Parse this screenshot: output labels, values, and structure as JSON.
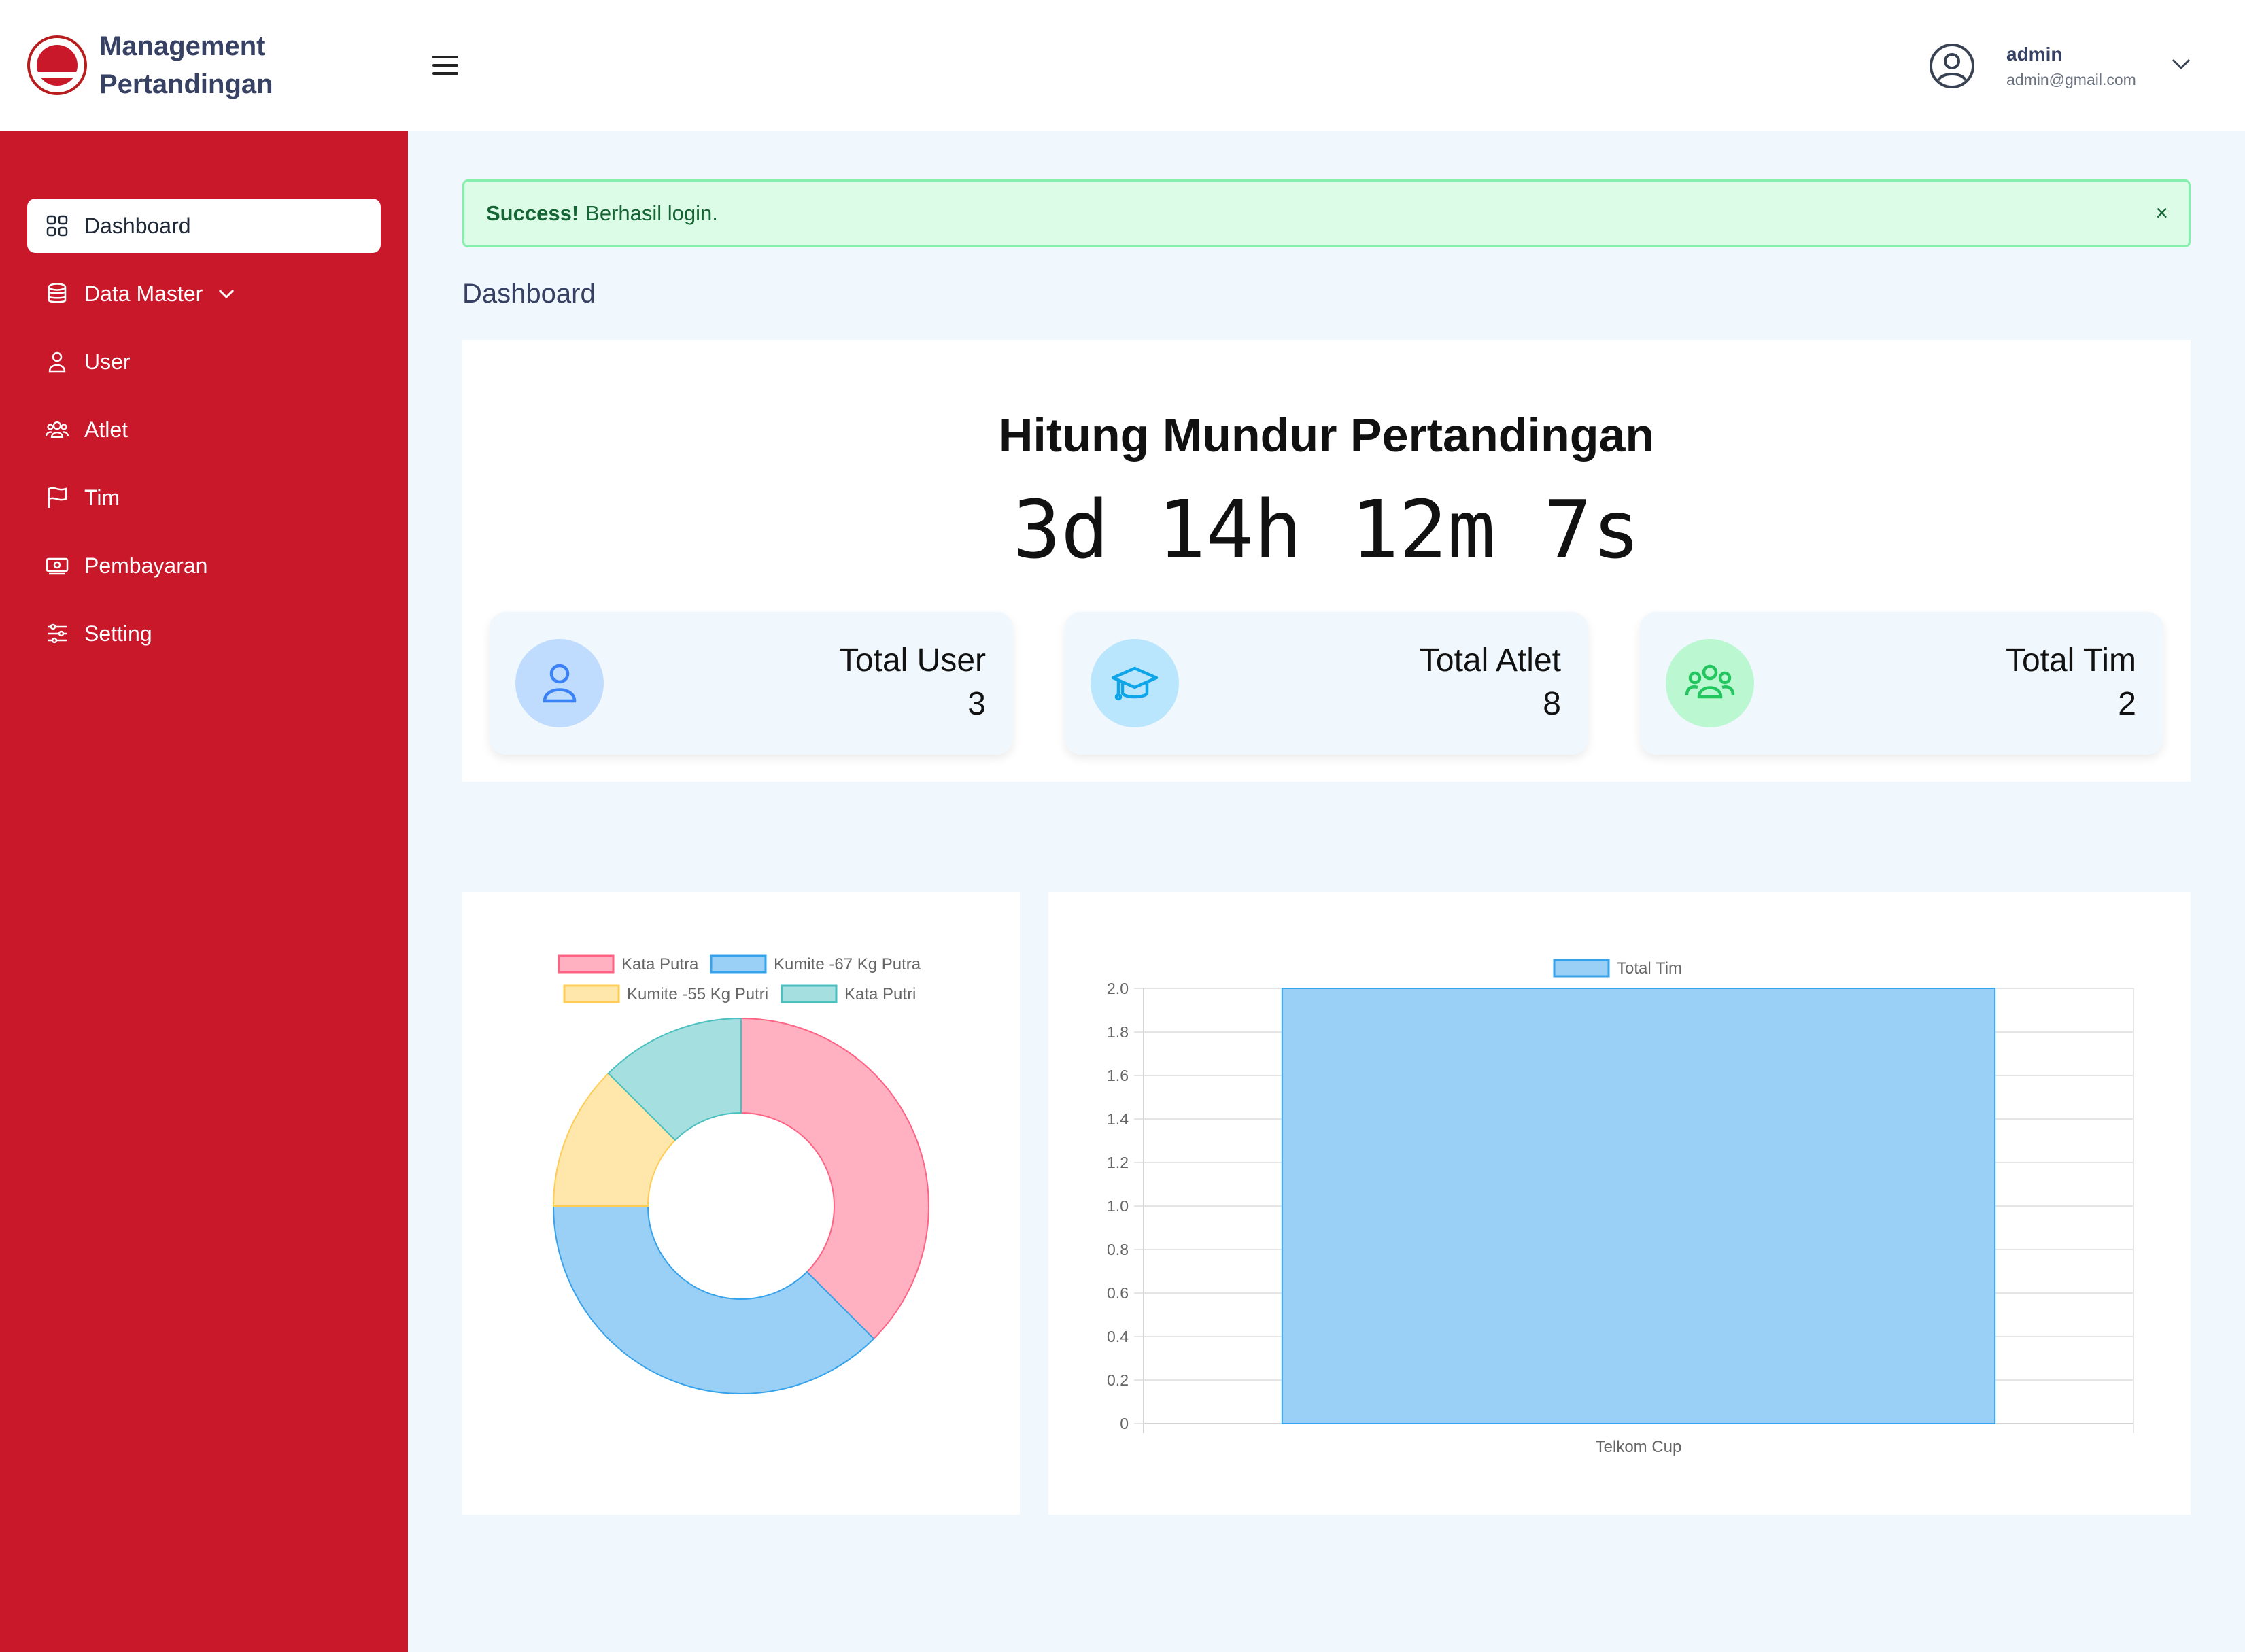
{
  "header": {
    "brand_line1": "Management",
    "brand_line2": "Pertandingan",
    "user": {
      "name": "admin",
      "email": "admin@gmail.com"
    }
  },
  "sidebar": {
    "items": [
      {
        "label": "Dashboard",
        "icon": "grid-icon",
        "active": true
      },
      {
        "label": "Data Master",
        "icon": "database-icon",
        "has_submenu": true
      },
      {
        "label": "User",
        "icon": "user-icon"
      },
      {
        "label": "Atlet",
        "icon": "users-group-icon"
      },
      {
        "label": "Tim",
        "icon": "flag-icon"
      },
      {
        "label": "Pembayaran",
        "icon": "payment-icon"
      },
      {
        "label": "Setting",
        "icon": "sliders-icon"
      }
    ]
  },
  "alert": {
    "title": "Success!",
    "message": "Berhasil login.",
    "close": "×"
  },
  "page": {
    "title": "Dashboard"
  },
  "countdown": {
    "title": "Hitung Mundur Pertandingan",
    "value": "3d 14h 12m 7s"
  },
  "stats": [
    {
      "label": "Total User",
      "value": "3",
      "icon": "user-icon",
      "color": "#3b82f6",
      "bg": "#bfdbfe"
    },
    {
      "label": "Total Atlet",
      "value": "8",
      "icon": "graduation-cap-icon",
      "color": "#0ea5e9",
      "bg": "#bae6fd"
    },
    {
      "label": "Total Tim",
      "value": "2",
      "icon": "users-group-icon",
      "color": "#22c55e",
      "bg": "#bbf7d0"
    }
  ],
  "chart_data": [
    {
      "type": "pie",
      "donut": true,
      "labels": [
        "Kata Putra",
        "Kumite -67 Kg Putra",
        "Kumite -55 Kg Putri",
        "Kata Putri"
      ],
      "values": [
        3,
        3,
        1,
        1
      ],
      "colors": [
        "#ffb1c1",
        "#9ad0f5",
        "#ffe6aa",
        "#a5dfdf"
      ],
      "borders": [
        "#ff6384",
        "#36a2eb",
        "#ffcd56",
        "#4bc0c0"
      ],
      "legend": "top"
    },
    {
      "type": "bar",
      "categories": [
        "Telkom Cup"
      ],
      "series": [
        {
          "name": "Total Tim",
          "values": [
            2
          ]
        }
      ],
      "ylim": [
        0,
        2
      ],
      "yticks": [
        "0",
        "0.2",
        "0.4",
        "0.6",
        "0.8",
        "1.0",
        "1.2",
        "1.4",
        "1.6",
        "1.8",
        "2.0"
      ],
      "color": "#9ad0f5",
      "border": "#36a2eb",
      "grid": true,
      "legend": "top"
    }
  ]
}
